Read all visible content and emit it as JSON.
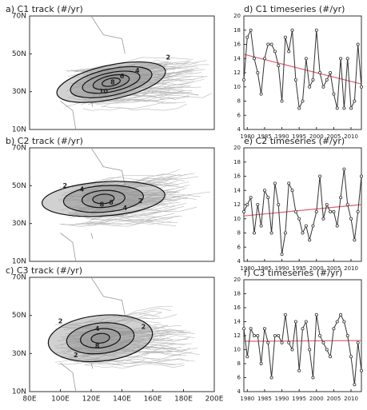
{
  "chart_data": [
    {
      "type": "map",
      "title": "a) C1 track (#/yr)",
      "xlim": [
        80,
        200
      ],
      "ylim": [
        10,
        70
      ],
      "yticks": [
        {
          "value": 10,
          "label": "10N"
        },
        {
          "value": 30,
          "label": "30N"
        },
        {
          "value": 50,
          "label": "50N"
        },
        {
          "value": 70,
          "label": "70N"
        }
      ],
      "contours": [
        {
          "label": "2",
          "lon": 170,
          "lat": 48
        },
        {
          "label": "4",
          "lon": 150,
          "lat": 41
        },
        {
          "label": "6",
          "lon": 140,
          "lat": 38
        },
        {
          "label": "8",
          "lon": 134,
          "lat": 35
        },
        {
          "label": "10",
          "lon": 128,
          "lat": 30
        }
      ]
    },
    {
      "type": "map",
      "title": "b) C2 track (#/yr)",
      "xlim": [
        80,
        200
      ],
      "ylim": [
        10,
        70
      ],
      "yticks": [
        {
          "value": 10,
          "label": "10N"
        },
        {
          "value": 30,
          "label": "30N"
        },
        {
          "value": 50,
          "label": "50N"
        },
        {
          "value": 70,
          "label": "70N"
        }
      ],
      "contours": [
        {
          "label": "2",
          "lon": 103,
          "lat": 50
        },
        {
          "label": "4",
          "lon": 114,
          "lat": 48
        },
        {
          "label": "6",
          "lon": 133,
          "lat": 41
        },
        {
          "label": "8",
          "lon": 127,
          "lat": 40
        },
        {
          "label": "4",
          "lon": 142,
          "lat": 38
        },
        {
          "label": "2",
          "lon": 152,
          "lat": 42
        }
      ]
    },
    {
      "type": "map",
      "title": "c) C3 track (#/yr)",
      "xlim": [
        80,
        200
      ],
      "ylim": [
        10,
        70
      ],
      "xticks": [
        {
          "value": 80,
          "label": "80E"
        },
        {
          "value": 100,
          "label": "100E"
        },
        {
          "value": 120,
          "label": "120E"
        },
        {
          "value": 140,
          "label": "140E"
        },
        {
          "value": 160,
          "label": "160E"
        },
        {
          "value": 180,
          "label": "180E"
        },
        {
          "value": 200,
          "label": "200E"
        }
      ],
      "yticks": [
        {
          "value": 10,
          "label": "10N"
        },
        {
          "value": 30,
          "label": "30N"
        },
        {
          "value": 50,
          "label": "50N"
        },
        {
          "value": 70,
          "label": "70N"
        }
      ],
      "contours": [
        {
          "label": "2",
          "lon": 100,
          "lat": 47
        },
        {
          "label": "4",
          "lon": 124,
          "lat": 43
        },
        {
          "label": "2",
          "lon": 154,
          "lat": 44
        },
        {
          "label": "8",
          "lon": 124,
          "lat": 34
        },
        {
          "label": "2",
          "lon": 110,
          "lat": 29
        }
      ]
    },
    {
      "type": "line",
      "title": "d) C1 timeseries (#/yr)",
      "xlim": [
        1979,
        2013
      ],
      "ylim": [
        4,
        20
      ],
      "xticks": [
        1980,
        1985,
        1990,
        1995,
        2000,
        2005,
        2010
      ],
      "yticks": [
        4,
        6,
        8,
        10,
        12,
        14,
        16,
        18,
        20
      ],
      "x": [
        1979,
        1980,
        1981,
        1982,
        1983,
        1984,
        1985,
        1986,
        1987,
        1988,
        1989,
        1990,
        1991,
        1992,
        1993,
        1994,
        1995,
        1996,
        1997,
        1998,
        1999,
        2000,
        2001,
        2002,
        2003,
        2004,
        2005,
        2006,
        2007,
        2008,
        2009,
        2010,
        2011,
        2012,
        2013
      ],
      "series": [
        {
          "color": "#333333",
          "values": [
            11,
            17,
            18,
            14,
            12,
            9,
            14,
            16,
            16,
            15,
            13,
            8,
            17,
            15,
            18,
            11,
            7,
            8,
            14,
            10,
            11,
            18,
            12,
            10,
            11,
            12,
            9,
            7,
            14,
            7,
            14,
            7,
            8,
            16,
            10
          ]
        }
      ],
      "trend": {
        "color": "#e06070",
        "values": [
          14.6,
          10.4
        ]
      }
    },
    {
      "type": "line",
      "title": "e) C2 timeseries (#/yr)",
      "xlim": [
        1979,
        2013
      ],
      "ylim": [
        4,
        20
      ],
      "xticks": [
        1980,
        1985,
        1990,
        1995,
        2000,
        2005,
        2010
      ],
      "yticks": [
        4,
        6,
        8,
        10,
        12,
        14,
        16,
        18,
        20
      ],
      "x": [
        1979,
        1980,
        1981,
        1982,
        1983,
        1984,
        1985,
        1986,
        1987,
        1988,
        1989,
        1990,
        1991,
        1992,
        1993,
        1994,
        1995,
        1996,
        1997,
        1998,
        1999,
        2000,
        2001,
        2002,
        2003,
        2004,
        2005,
        2006,
        2007,
        2008,
        2009,
        2010,
        2011,
        2012,
        2013
      ],
      "series": [
        {
          "color": "#333333",
          "values": [
            11,
            12,
            13,
            8,
            12,
            9,
            14,
            13,
            8,
            15,
            12,
            5,
            8,
            15,
            14,
            11,
            10,
            8,
            9,
            7,
            9,
            11,
            16,
            10,
            12,
            11,
            11,
            9,
            13,
            17,
            12,
            10,
            7,
            11,
            16
          ]
        }
      ],
      "trend": {
        "color": "#e06070",
        "values": [
          10.4,
          12
        ]
      }
    },
    {
      "type": "line",
      "title": "f) C3 timeseries (#/yr)",
      "xlim": [
        1979,
        2013
      ],
      "ylim": [
        4,
        20
      ],
      "xticks": [
        1980,
        1985,
        1990,
        1995,
        2000,
        2005,
        2010
      ],
      "yticks": [
        4,
        6,
        8,
        10,
        12,
        14,
        16,
        18,
        20
      ],
      "x": [
        1979,
        1980,
        1981,
        1982,
        1983,
        1984,
        1985,
        1986,
        1987,
        1988,
        1989,
        1990,
        1991,
        1992,
        1993,
        1994,
        1995,
        1996,
        1997,
        1998,
        1999,
        2000,
        2001,
        2002,
        2003,
        2004,
        2005,
        2006,
        2007,
        2008,
        2009,
        2010,
        2011,
        2012,
        2013
      ],
      "series": [
        {
          "color": "#333333",
          "values": [
            13,
            9,
            13,
            12,
            12,
            8,
            13,
            11,
            6,
            12,
            12,
            11,
            15,
            11,
            10,
            14,
            7,
            13,
            14,
            10,
            6,
            15,
            12,
            11,
            10,
            9,
            13,
            14,
            15,
            14,
            12,
            9,
            5,
            11,
            7
          ]
        }
      ],
      "trend": {
        "color": "#e06070",
        "values": [
          11.2,
          11.3
        ]
      }
    }
  ]
}
